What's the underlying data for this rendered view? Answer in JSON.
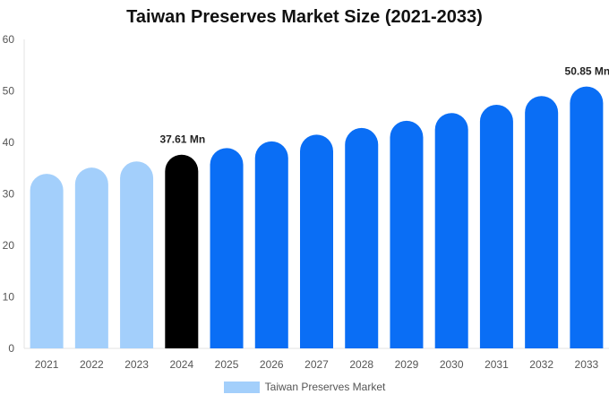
{
  "chart_data": {
    "type": "bar",
    "title": "Taiwan Preserves Market Size (2021-2033)",
    "categories": [
      "2021",
      "2022",
      "2023",
      "2024",
      "2025",
      "2026",
      "2027",
      "2028",
      "2029",
      "2030",
      "2031",
      "2032",
      "2033"
    ],
    "series": [
      {
        "name": "Taiwan Preserves Market",
        "values": [
          33.9,
          35.1,
          36.3,
          37.61,
          38.9,
          40.2,
          41.5,
          42.8,
          44.2,
          45.7,
          47.3,
          49.0,
          50.85
        ]
      }
    ],
    "ylim": [
      0,
      60
    ],
    "yticks": [
      0,
      10,
      20,
      30,
      40,
      50,
      60
    ],
    "grid": false,
    "legend_position": "bottom",
    "annotations": [
      {
        "category": "2024",
        "text": "37.61 Mn"
      },
      {
        "category": "2033",
        "text": "50.85 Mn"
      }
    ],
    "colors": {
      "historical": "#a3cffb",
      "base_year": "#000000",
      "forecast": "#0a6ef5",
      "legend": "#a3cffb"
    }
  }
}
